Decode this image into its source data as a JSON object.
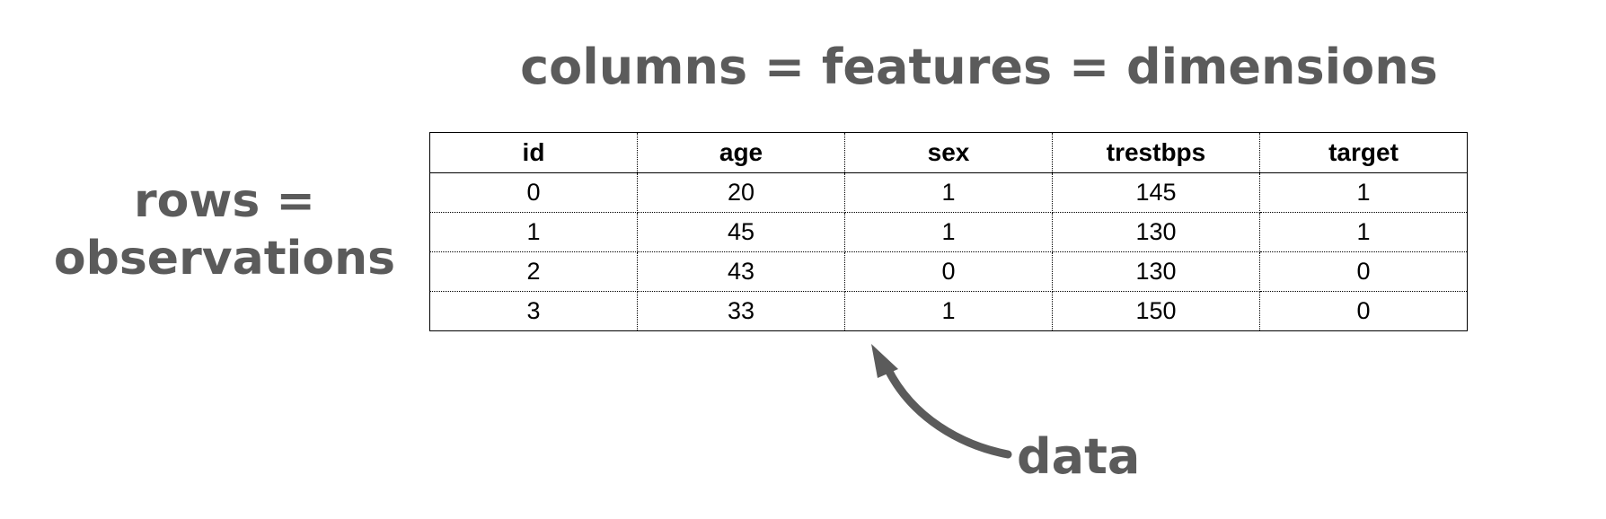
{
  "labels": {
    "columns": "columns = features = dimensions",
    "rows_line1": "rows =",
    "rows_line2": "observations",
    "data": "data"
  },
  "colors": {
    "annotation": "#5b5b5b",
    "table_text": "#000000"
  },
  "table": {
    "headers": [
      "id",
      "age",
      "sex",
      "trestbps",
      "target"
    ],
    "rows": [
      [
        "0",
        "20",
        "1",
        "145",
        "1"
      ],
      [
        "1",
        "45",
        "1",
        "130",
        "1"
      ],
      [
        "2",
        "43",
        "0",
        "130",
        "0"
      ],
      [
        "3",
        "33",
        "1",
        "150",
        "0"
      ]
    ]
  }
}
